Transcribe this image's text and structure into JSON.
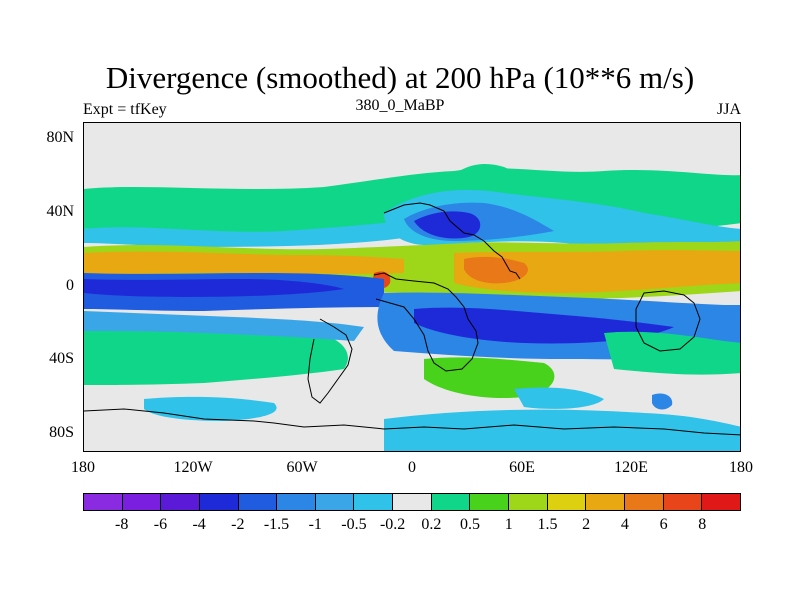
{
  "title": "Divergence (smoothed) at 200 hPa (10**6 m/s)",
  "left_string": "Expt = tfKey",
  "center_string": "380_0_MaBP",
  "right_string": "JJA",
  "lat_labels": [
    "80N",
    "40N",
    "0",
    "40S",
    "80S"
  ],
  "lon_labels": [
    "180",
    "120W",
    "60W",
    "0",
    "60E",
    "120E",
    "180"
  ],
  "colorbar": {
    "colors": [
      "#8a2be2",
      "#7a1fe0",
      "#5a1ad8",
      "#1e2ad8",
      "#1f5ce0",
      "#2b86e6",
      "#3aa6e8",
      "#30c2e8",
      "#e8e8e8",
      "#10d68a",
      "#48d21c",
      "#9ed61a",
      "#dcd010",
      "#e8a812",
      "#e87818",
      "#e8461a",
      "#e01818"
    ],
    "labels": [
      "-8",
      "-6",
      "-4",
      "-2",
      "-1.5",
      "-1",
      "-0.5",
      "-0.2",
      "0.2",
      "0.5",
      "1",
      "1.5",
      "2",
      "4",
      "6",
      "8"
    ]
  },
  "colors": {
    "neutral": "#e8e8e8",
    "green": "#10d68a",
    "lightgreen": "#48d21c",
    "yellowgreen": "#9ed61a",
    "yellow": "#dcd010",
    "orange": "#e8a812",
    "darkorange": "#e87818",
    "red": "#e8461a",
    "cyan": "#30c2e8",
    "lightblue": "#3aa6e8",
    "blue": "#2b86e6",
    "midblue": "#1f5ce0",
    "darkblue": "#1e2ad8"
  }
}
